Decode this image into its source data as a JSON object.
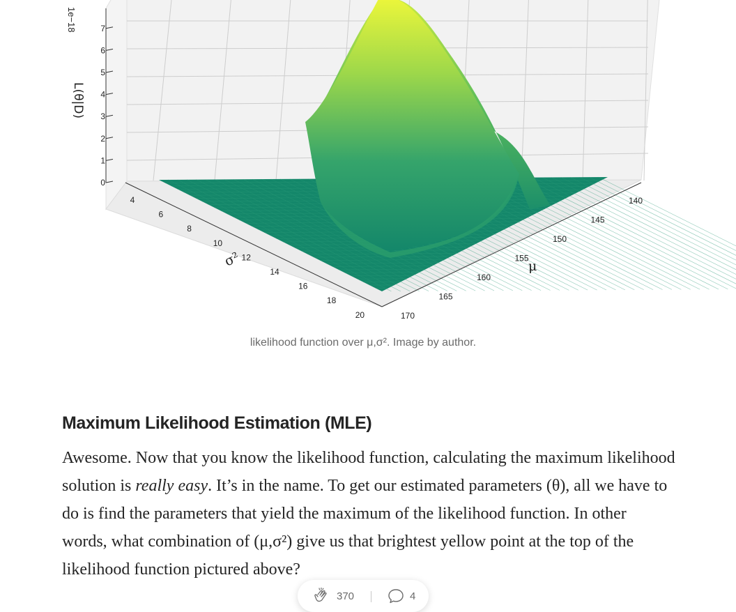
{
  "figure": {
    "z_scale_label": "1e−18",
    "z_axis_label": "L(θ|D)",
    "z_ticks": [
      "0",
      "1",
      "2",
      "3",
      "4",
      "5",
      "6",
      "7"
    ],
    "sigma_axis_label": "σ²",
    "sigma_ticks": [
      "4",
      "6",
      "8",
      "10",
      "12",
      "14",
      "16",
      "18",
      "20"
    ],
    "mu_axis_label": "μ",
    "mu_ticks": [
      "170",
      "165",
      "160",
      "155",
      "150",
      "145",
      "140"
    ],
    "colors": {
      "surface_low": "#14876a",
      "surface_mid": "#37a86a",
      "surface_high": "#e6f53a",
      "pane": "#f2f2f2",
      "grid": "#c9c9c9"
    }
  },
  "caption": "likelihood function over μ,σ². Image by author.",
  "section": {
    "heading": "Maximum Likelihood Estimation (MLE)",
    "p1": "Awesome. Now that you know the likelihood function, calculating the maximum likelihood solution is ",
    "p_em": "really easy",
    "p2": ". It’s in the name. To get our estimated parameters (θ), all we have to do is find the parameters that yield the maximum of the likelihood function. In other words, what combination of (μ,σ²) give us that brightest yellow point at the top of the likelihood function pictured above?"
  },
  "actions": {
    "clap_count": "370",
    "response_count": "4",
    "clap_icon": "clap-icon",
    "response_icon": "comment-icon"
  }
}
